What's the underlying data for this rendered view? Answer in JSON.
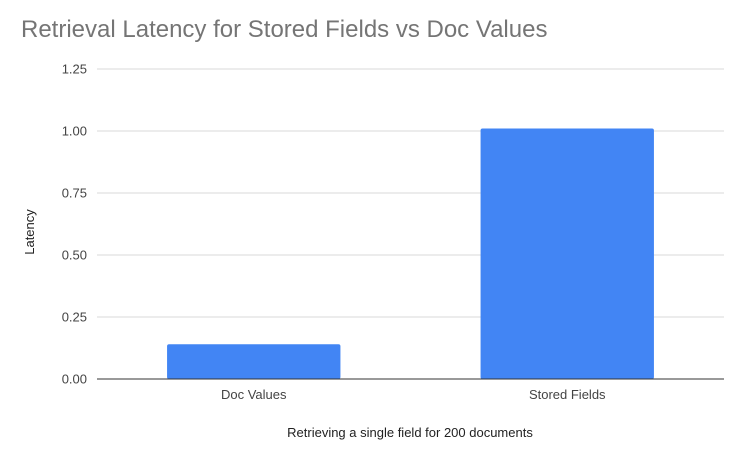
{
  "chart_data": {
    "type": "bar",
    "title": "Retrieval Latency for Stored Fields vs Doc Values",
    "xlabel": "Retrieving a single field for 200 documents",
    "ylabel": "Latency",
    "categories": [
      "Doc Values",
      "Stored Fields"
    ],
    "values": [
      0.14,
      1.01
    ],
    "ylim": [
      0,
      1.25
    ],
    "yticks": [
      "0.00",
      "0.25",
      "0.50",
      "0.75",
      "1.00",
      "1.25"
    ],
    "bar_color": "#4285F4",
    "grid": true,
    "legend": "none"
  }
}
